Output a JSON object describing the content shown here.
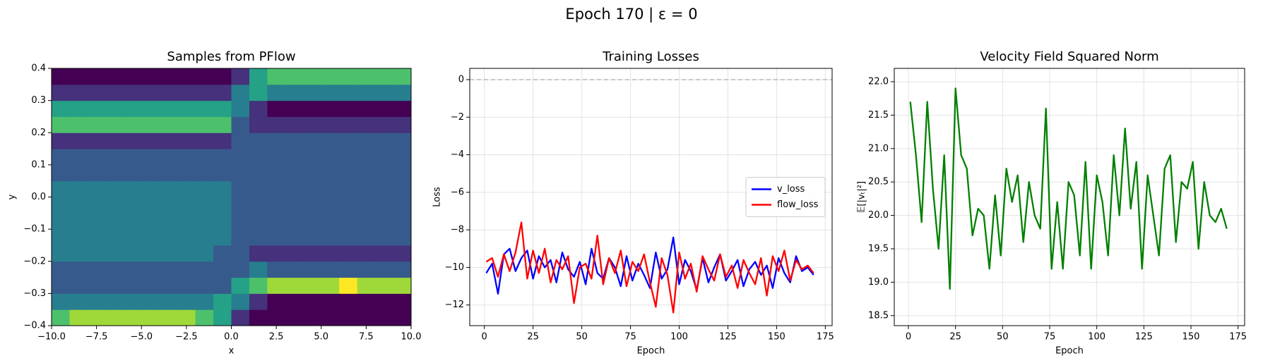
{
  "title": "Epoch 170 | ε = 0",
  "chart_data": [
    {
      "type": "heatmap",
      "title": "Samples from PFlow",
      "xlabel": "x",
      "ylabel": "y",
      "colormap": "viridis",
      "grid": false,
      "xbins": [
        -10,
        -9,
        -8,
        -7,
        -6,
        -5,
        -4,
        -3,
        -2,
        -1,
        0,
        1,
        2,
        3,
        4,
        5,
        6,
        7,
        8,
        9,
        10
      ],
      "ybins": [
        -0.4,
        -0.35,
        -0.3,
        -0.25,
        -0.2,
        -0.15,
        -0.1,
        -0.05,
        0,
        0.05,
        0.1,
        0.15,
        0.2,
        0.25,
        0.3,
        0.35,
        0.4
      ],
      "values": [
        [
          6,
          7,
          7,
          7,
          7,
          7,
          7,
          7,
          6,
          5,
          2,
          1,
          1,
          1,
          1,
          1,
          1,
          1,
          1,
          1
        ],
        [
          4,
          4,
          4,
          4,
          4,
          4,
          4,
          4,
          4,
          5,
          4,
          2,
          1,
          1,
          1,
          1,
          1,
          1,
          1,
          1
        ],
        [
          3,
          3,
          3,
          3,
          3,
          3,
          3,
          3,
          3,
          3,
          5,
          6,
          7,
          7,
          7,
          7,
          8,
          7,
          7,
          7
        ],
        [
          3,
          3,
          3,
          3,
          3,
          3,
          3,
          3,
          3,
          3,
          3,
          4,
          3,
          3,
          3,
          3,
          3,
          3,
          3,
          3
        ],
        [
          4,
          4,
          4,
          4,
          4,
          4,
          4,
          4,
          4,
          3,
          3,
          2,
          2,
          2,
          2,
          2,
          2,
          2,
          2,
          2
        ],
        [
          4,
          4,
          4,
          4,
          4,
          4,
          4,
          4,
          4,
          4,
          3,
          3,
          3,
          3,
          3,
          3,
          3,
          3,
          3,
          3
        ],
        [
          4,
          4,
          4,
          4,
          4,
          4,
          4,
          4,
          4,
          4,
          3,
          3,
          3,
          3,
          3,
          3,
          3,
          3,
          3,
          3
        ],
        [
          4,
          4,
          4,
          4,
          4,
          4,
          4,
          4,
          4,
          4,
          3,
          3,
          3,
          3,
          3,
          3,
          3,
          3,
          3,
          3
        ],
        [
          4,
          4,
          4,
          4,
          4,
          4,
          4,
          4,
          4,
          4,
          3,
          3,
          3,
          3,
          3,
          3,
          3,
          3,
          3,
          3
        ],
        [
          3,
          3,
          3,
          3,
          3,
          3,
          3,
          3,
          3,
          3,
          3,
          3,
          3,
          3,
          3,
          3,
          3,
          3,
          3,
          3
        ],
        [
          3,
          3,
          3,
          3,
          3,
          3,
          3,
          3,
          3,
          3,
          3,
          3,
          3,
          3,
          3,
          3,
          3,
          3,
          3,
          3
        ],
        [
          2,
          2,
          2,
          2,
          2,
          2,
          2,
          2,
          2,
          2,
          3,
          3,
          3,
          3,
          3,
          3,
          3,
          3,
          3,
          3
        ],
        [
          6,
          6,
          6,
          6,
          6,
          6,
          6,
          6,
          6,
          6,
          3,
          2,
          2,
          2,
          2,
          2,
          2,
          2,
          2,
          2
        ],
        [
          5,
          5,
          5,
          5,
          5,
          5,
          5,
          5,
          5,
          5,
          4,
          2,
          1,
          1,
          1,
          1,
          1,
          1,
          1,
          1
        ],
        [
          2,
          2,
          2,
          2,
          2,
          2,
          2,
          2,
          2,
          2,
          4,
          5,
          4,
          4,
          4,
          4,
          4,
          4,
          4,
          4
        ],
        [
          1,
          1,
          1,
          1,
          1,
          1,
          1,
          1,
          1,
          1,
          2,
          5,
          6,
          6,
          6,
          6,
          6,
          6,
          6,
          6
        ]
      ],
      "xlim": [
        -10,
        10
      ],
      "xticks": [
        {
          "value": -10,
          "label": "−10.0"
        },
        {
          "value": -7.5,
          "label": "−7.5"
        },
        {
          "value": -5,
          "label": "−5.0"
        },
        {
          "value": -2.5,
          "label": "−2.5"
        },
        {
          "value": 0,
          "label": "0.0"
        },
        2.5,
        {
          "value": 5,
          "label": "5.0"
        },
        7.5,
        {
          "value": 10,
          "label": "10.0"
        }
      ],
      "ylim": [
        -0.4,
        0.4
      ],
      "yticks": [
        {
          "value": -0.4,
          "label": "−0.4"
        },
        {
          "value": -0.3,
          "label": "−0.3"
        },
        {
          "value": -0.2,
          "label": "−0.2"
        },
        {
          "value": -0.1,
          "label": "−0.1"
        },
        {
          "value": 0,
          "label": "0.0"
        },
        0.1,
        0.2,
        0.3,
        0.4
      ]
    },
    {
      "type": "line",
      "title": "Training Losses",
      "xlabel": "Epoch",
      "ylabel": "Loss",
      "grid": true,
      "legend": "center right",
      "hline": 0,
      "x": [
        1,
        4,
        7,
        10,
        13,
        16,
        19,
        22,
        25,
        28,
        31,
        34,
        37,
        40,
        43,
        46,
        49,
        52,
        55,
        58,
        61,
        64,
        67,
        70,
        73,
        76,
        79,
        82,
        85,
        88,
        91,
        94,
        97,
        100,
        103,
        106,
        109,
        112,
        115,
        118,
        121,
        124,
        127,
        130,
        133,
        136,
        139,
        142,
        145,
        148,
        151,
        154,
        157,
        160,
        163,
        166,
        169
      ],
      "series": [
        {
          "name": "v_loss",
          "color": "#0000ff",
          "values": [
            -10.3,
            -9.8,
            -11.4,
            -9.3,
            -9.0,
            -10.2,
            -9.5,
            -9.1,
            -10.6,
            -9.4,
            -10.0,
            -9.6,
            -10.8,
            -9.2,
            -10.1,
            -10.5,
            -9.7,
            -10.9,
            -9.0,
            -10.3,
            -10.6,
            -9.5,
            -10.0,
            -11.0,
            -9.4,
            -10.7,
            -9.8,
            -10.4,
            -11.1,
            -9.2,
            -10.6,
            -10.1,
            -8.4,
            -10.9,
            -9.6,
            -10.2,
            -11.2,
            -9.5,
            -10.8,
            -10.0,
            -9.3,
            -10.7,
            -10.2,
            -9.6,
            -11.0,
            -10.1,
            -9.7,
            -10.4,
            -9.9,
            -11.1,
            -9.5,
            -10.3,
            -10.8,
            -9.4,
            -10.2,
            -10.0,
            -10.4
          ]
        },
        {
          "name": "flow_loss",
          "color": "#ff0000",
          "values": [
            -9.7,
            -9.5,
            -10.5,
            -9.3,
            -10.2,
            -9.2,
            -7.6,
            -10.6,
            -9.1,
            -10.3,
            -9.0,
            -10.8,
            -9.6,
            -10.1,
            -9.4,
            -11.9,
            -10.0,
            -9.8,
            -10.6,
            -8.3,
            -10.9,
            -9.5,
            -10.3,
            -9.1,
            -11.0,
            -9.7,
            -10.2,
            -9.3,
            -10.8,
            -12.1,
            -9.5,
            -10.4,
            -12.4,
            -9.2,
            -10.6,
            -9.8,
            -11.3,
            -9.4,
            -10.1,
            -10.7,
            -9.3,
            -10.5,
            -9.9,
            -11.1,
            -9.6,
            -10.3,
            -10.9,
            -9.5,
            -11.5,
            -9.4,
            -10.2,
            -9.1,
            -10.7,
            -9.6,
            -10.1,
            -9.9,
            -10.3
          ]
        }
      ],
      "xlim": [
        -7.5,
        178.5
      ],
      "xticks": [
        0,
        25,
        50,
        75,
        100,
        125,
        150,
        175
      ],
      "ylim": [
        -13.1,
        0.6
      ],
      "yticks": [
        {
          "value": -12,
          "label": "−12"
        },
        {
          "value": -10,
          "label": "−10"
        },
        {
          "value": -8,
          "label": "−8"
        },
        {
          "value": -6,
          "label": "−6"
        },
        {
          "value": -4,
          "label": "−4"
        },
        {
          "value": -2,
          "label": "−2"
        },
        0
      ]
    },
    {
      "type": "line",
      "title": "Velocity Field Squared Norm",
      "xlabel": "Epoch",
      "ylabel": "𝔼[|vₜ|²]",
      "grid": true,
      "x": [
        1,
        4,
        7,
        10,
        13,
        16,
        19,
        22,
        25,
        28,
        31,
        34,
        37,
        40,
        43,
        46,
        49,
        52,
        55,
        58,
        61,
        64,
        67,
        70,
        73,
        76,
        79,
        82,
        85,
        88,
        91,
        94,
        97,
        100,
        103,
        106,
        109,
        112,
        115,
        118,
        121,
        124,
        127,
        130,
        133,
        136,
        139,
        142,
        145,
        148,
        151,
        154,
        157,
        160,
        163,
        166,
        169
      ],
      "series": [
        {
          "color": "#008000",
          "values": [
            21.7,
            20.9,
            19.9,
            21.7,
            20.4,
            19.5,
            20.9,
            18.9,
            21.9,
            20.9,
            20.7,
            19.7,
            20.1,
            20.0,
            19.2,
            20.3,
            19.4,
            20.7,
            20.2,
            20.6,
            19.6,
            20.5,
            20.0,
            19.8,
            21.6,
            19.2,
            20.2,
            19.2,
            20.5,
            20.3,
            19.4,
            20.8,
            19.2,
            20.6,
            20.2,
            19.4,
            20.9,
            20.0,
            21.3,
            20.1,
            20.8,
            19.2,
            20.6,
            20.0,
            19.4,
            20.7,
            20.9,
            19.6,
            20.5,
            20.4,
            20.8,
            19.5,
            20.5,
            20.0,
            19.9,
            20.1,
            19.8
          ]
        }
      ],
      "xlim": [
        -7.5,
        178.5
      ],
      "xticks": [
        0,
        25,
        50,
        75,
        100,
        125,
        150,
        175
      ],
      "ylim": [
        18.35,
        22.2
      ],
      "yticks": [
        18.5,
        {
          "value": 19,
          "label": "19.0"
        },
        19.5,
        {
          "value": 20,
          "label": "20.0"
        },
        20.5,
        {
          "value": 21,
          "label": "21.0"
        },
        21.5,
        {
          "value": 22,
          "label": "22.0"
        }
      ]
    }
  ]
}
